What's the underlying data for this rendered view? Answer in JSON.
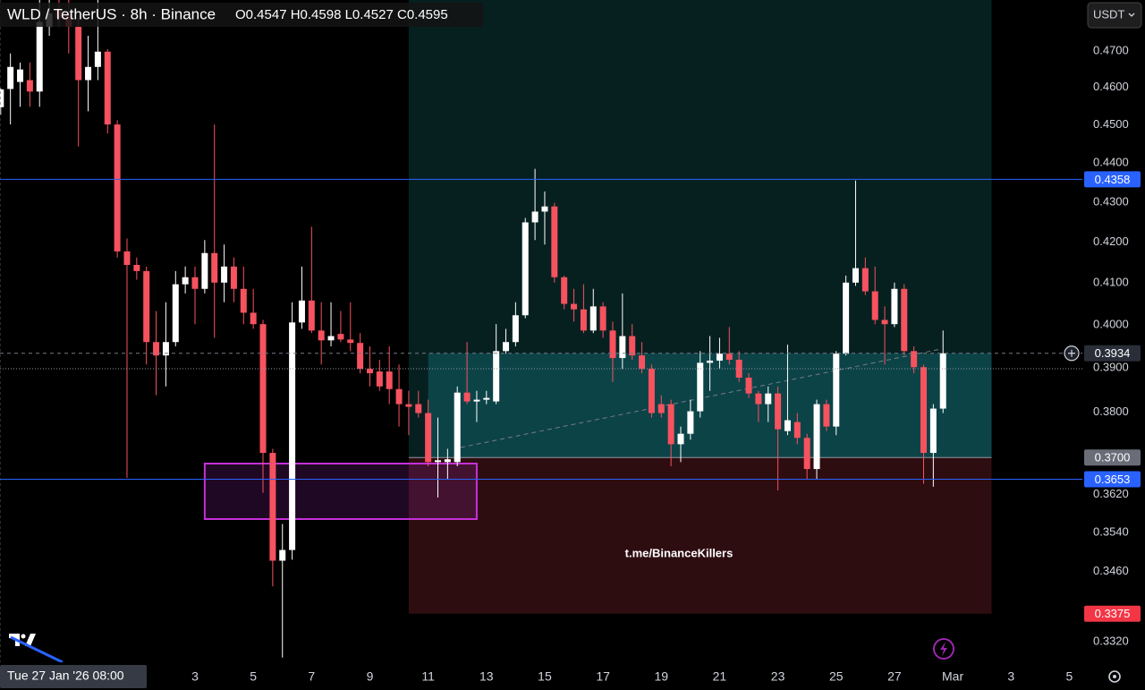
{
  "chart_data": {
    "type": "candlestick",
    "title": "WLD / TetherUS · 8h · Binance",
    "ohlc_legend": "O0.4547 H0.4598 L0.4527 C0.4595",
    "currency": "USDT",
    "crosshair_time": "Tue 27 Jan '26 08:00",
    "watermark": "t.me/BinanceKillers",
    "x_labels": [
      "3",
      "5",
      "7",
      "9",
      "11",
      "13",
      "15",
      "17",
      "19",
      "21",
      "23",
      "25",
      "27",
      "Mar",
      "3",
      "5"
    ],
    "log_scale": true,
    "grid": false,
    "up_color": "#ffffff",
    "down_color": "#f7525f",
    "ylim": [
      0.328,
      0.4843
    ],
    "yticks": [
      {
        "value": 0.47,
        "label": "0.4700"
      },
      {
        "value": 0.46,
        "label": "0.4600"
      },
      {
        "value": 0.45,
        "label": "0.4500"
      },
      {
        "value": 0.44,
        "label": "0.4400"
      },
      {
        "value": 0.43,
        "label": "0.4300"
      },
      {
        "value": 0.42,
        "label": "0.4200"
      },
      {
        "value": 0.41,
        "label": "0.4100"
      },
      {
        "value": 0.4,
        "label": "0.4000"
      },
      {
        "value": 0.39,
        "label": "0.3900"
      },
      {
        "value": 0.38,
        "label": "0.3800"
      },
      {
        "value": 0.362,
        "label": "0.3620"
      },
      {
        "value": 0.354,
        "label": "0.3540"
      },
      {
        "value": 0.346,
        "label": "0.3460"
      },
      {
        "value": 0.332,
        "label": "0.3320"
      }
    ],
    "horizontal_lines": [
      {
        "value": 0.4358,
        "color": "#2962ff"
      },
      {
        "value": 0.3653,
        "color": "#2962ff"
      }
    ],
    "last_price": 0.3934,
    "position": {
      "entry": {
        "value": 0.37,
        "label": "0.3700"
      },
      "stop": 0.3375
    },
    "open": [
      0.4547,
      0.4596,
      0.4615,
      0.462,
      0.4589,
      0.4767,
      0.4817,
      0.4805,
      0.4767,
      0.462,
      0.4656,
      0.4698,
      0.4501,
      0.4177,
      0.4144,
      0.4129,
      0.396,
      0.3929,
      0.396,
      0.4097,
      0.4114,
      0.4086,
      0.4173,
      0.4101,
      0.414,
      0.4086,
      0.4029,
      0.4002,
      0.371,
      0.3482,
      0.3504,
      0.4006,
      0.4058,
      0.3987,
      0.3964,
      0.3979,
      0.3966,
      0.3958,
      0.3898,
      0.3892,
      0.3892,
      0.3852,
      0.3818,
      0.3818,
      0.3798,
      0.369,
      0.369,
      0.369,
      0.3844,
      0.3824,
      0.3828,
      0.3824,
      0.3939,
      0.396,
      0.4023,
      0.4249,
      0.4276,
      0.4289,
      0.4114,
      0.405,
      0.4037,
      0.3987,
      0.4044,
      0.3987,
      0.3923,
      0.3974,
      0.3929,
      0.3898,
      0.3818,
      0.3818,
      0.3729,
      0.3752,
      0.3802,
      0.3912,
      0.3917,
      0.3933,
      0.3919,
      0.3878,
      0.3842,
      0.3818,
      0.3842,
      0.3758,
      0.3778,
      0.3743,
      0.3675,
      0.3818,
      0.3768,
      0.3933,
      0.4101,
      0.4136,
      0.408,
      0.4012,
      0.4002,
      0.4086,
      0.3939,
      0.3902,
      0.371,
      0.3808
    ],
    "high": [
      0.4598,
      0.4693,
      0.4668,
      0.4668,
      0.4843,
      0.4843,
      0.4843,
      0.4843,
      0.4792,
      0.4742,
      0.4843,
      0.4705,
      0.4512,
      0.4209,
      0.4162,
      0.414,
      0.4033,
      0.4054,
      0.4129,
      0.414,
      0.414,
      0.4205,
      0.4501,
      0.4194,
      0.4162,
      0.414,
      0.4086,
      0.4012,
      0.3719,
      0.3558,
      0.4054,
      0.414,
      0.4238,
      0.4054,
      0.4054,
      0.4033,
      0.4054,
      0.3981,
      0.395,
      0.3919,
      0.395,
      0.3908,
      0.3848,
      0.3848,
      0.3828,
      0.3788,
      0.3719,
      0.3858,
      0.396,
      0.3848,
      0.3848,
      0.4002,
      0.3991,
      0.4054,
      0.426,
      0.4385,
      0.4327,
      0.4298,
      0.4118,
      0.4086,
      0.4097,
      0.4086,
      0.4054,
      0.4008,
      0.4075,
      0.4002,
      0.396,
      0.3908,
      0.3838,
      0.3828,
      0.3768,
      0.3828,
      0.3939,
      0.3974,
      0.397,
      0.3995,
      0.3939,
      0.3888,
      0.3848,
      0.3858,
      0.3858,
      0.3954,
      0.3798,
      0.3752,
      0.3828,
      0.3828,
      0.3939,
      0.4118,
      0.4355,
      0.4162,
      0.414,
      0.4044,
      0.4101,
      0.4097,
      0.395,
      0.3908,
      0.3818,
      0.3987
    ],
    "low": [
      0.4527,
      0.4501,
      0.4548,
      0.4548,
      0.4548,
      0.4742,
      0.4767,
      0.4693,
      0.4443,
      0.4536,
      0.462,
      0.4477,
      0.4162,
      0.3656,
      0.4108,
      0.3908,
      0.3838,
      0.3858,
      0.395,
      0.4075,
      0.4002,
      0.4075,
      0.397,
      0.4054,
      0.4054,
      0.4002,
      0.3991,
      0.3624,
      0.343,
      0.3289,
      0.3484,
      0.3991,
      0.3981,
      0.3908,
      0.395,
      0.396,
      0.3939,
      0.3888,
      0.3858,
      0.3848,
      0.3818,
      0.3768,
      0.3749,
      0.3788,
      0.3681,
      0.3614,
      0.3652,
      0.3681,
      0.3818,
      0.3778,
      0.3818,
      0.3818,
      0.3933,
      0.395,
      0.4016,
      0.4205,
      0.4194,
      0.4101,
      0.4037,
      0.4008,
      0.3981,
      0.3981,
      0.397,
      0.3868,
      0.3898,
      0.3919,
      0.3888,
      0.3788,
      0.3788,
      0.3681,
      0.369,
      0.3739,
      0.3788,
      0.3848,
      0.3898,
      0.3908,
      0.3868,
      0.3832,
      0.3778,
      0.3778,
      0.3629,
      0.3749,
      0.3729,
      0.3652,
      0.3652,
      0.3758,
      0.3749,
      0.3929,
      0.4093,
      0.4071,
      0.4002,
      0.3908,
      0.3995,
      0.3929,
      0.3888,
      0.3643,
      0.3637,
      0.3798
    ],
    "close": [
      0.4595,
      0.4656,
      0.4649,
      0.4589,
      0.4781,
      0.4805,
      0.4792,
      0.4767,
      0.462,
      0.4656,
      0.4698,
      0.4501,
      0.4177,
      0.4144,
      0.4129,
      0.396,
      0.3929,
      0.396,
      0.4097,
      0.4114,
      0.4086,
      0.4173,
      0.4101,
      0.414,
      0.4086,
      0.4029,
      0.4002,
      0.371,
      0.3482,
      0.3504,
      0.4006,
      0.4058,
      0.3987,
      0.3964,
      0.3974,
      0.3966,
      0.3958,
      0.3898,
      0.3888,
      0.3858,
      0.3852,
      0.3818,
      0.3812,
      0.3798,
      0.369,
      0.3694,
      0.3696,
      0.3844,
      0.3824,
      0.3828,
      0.3832,
      0.3939,
      0.396,
      0.4023,
      0.4249,
      0.4276,
      0.4289,
      0.4114,
      0.405,
      0.4037,
      0.3987,
      0.4044,
      0.3987,
      0.3923,
      0.3974,
      0.3929,
      0.3898,
      0.3798,
      0.3798,
      0.3729,
      0.3752,
      0.3802,
      0.3912,
      0.3917,
      0.3933,
      0.3919,
      0.3878,
      0.3842,
      0.3818,
      0.3842,
      0.3762,
      0.3782,
      0.3743,
      0.3675,
      0.3818,
      0.3768,
      0.3933,
      0.4101,
      0.4136,
      0.408,
      0.4012,
      0.4002,
      0.4086,
      0.3939,
      0.3902,
      0.371,
      0.3808,
      0.3934
    ]
  }
}
